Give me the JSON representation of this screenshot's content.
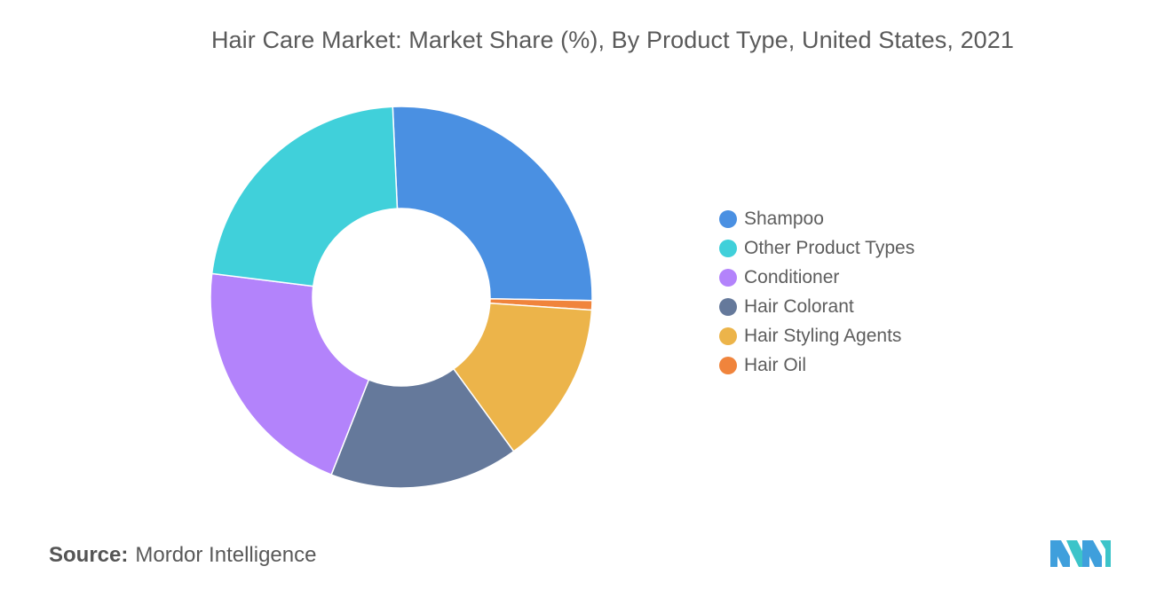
{
  "chart_data": {
    "type": "pie",
    "variant": "donut",
    "title": "Hair Care Market: Market Share (%), By Product Type, United States, 2021",
    "slices": [
      {
        "label": "Shampoo",
        "value": 26.0,
        "color": "#4a90e2"
      },
      {
        "label": "Hair Oil",
        "value": 0.8,
        "color": "#f0843c"
      },
      {
        "label": "Hair Styling Agents",
        "value": 13.9,
        "color": "#ecb44a"
      },
      {
        "label": "Hair Colorant",
        "value": 16.0,
        "color": "#65799b"
      },
      {
        "label": "Conditioner",
        "value": 21.0,
        "color": "#b383fb"
      },
      {
        "label": "Other Product Types",
        "value": 22.3,
        "color": "#40d0da"
      }
    ],
    "legend": {
      "placement": "right",
      "entries": [
        {
          "label": "Shampoo",
          "color": "#4a90e2"
        },
        {
          "label": "Other Product Types",
          "color": "#40d0da"
        },
        {
          "label": "Conditioner",
          "color": "#b383fb"
        },
        {
          "label": "Hair Colorant",
          "color": "#65799b"
        },
        {
          "label": "Hair Styling Agents",
          "color": "#ecb44a"
        },
        {
          "label": "Hair Oil",
          "color": "#f0843c"
        }
      ]
    }
  },
  "source": {
    "label": "Source:",
    "text": "Mordor Intelligence"
  },
  "logo": {
    "icon": "mordor-intelligence-logo-icon",
    "colors": [
      "#3f9fdc",
      "#3cc4c9"
    ]
  }
}
